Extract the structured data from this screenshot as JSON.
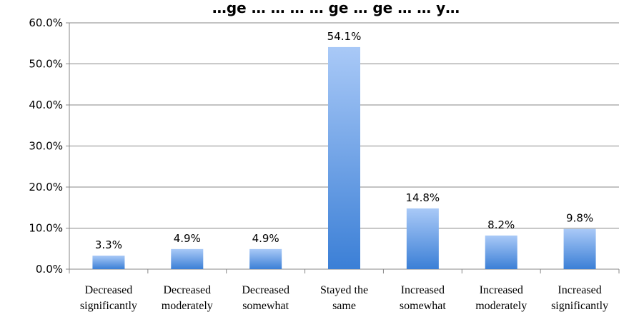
{
  "chart_data": {
    "type": "bar",
    "title": "…ge … … … … ge … ge … … y…",
    "categories": [
      [
        "Decreased",
        "significantly"
      ],
      [
        "Decreased",
        "moderately"
      ],
      [
        "Decreased",
        "somewhat"
      ],
      [
        "Stayed the",
        "same"
      ],
      [
        "Increased",
        "somewhat"
      ],
      [
        "Increased",
        "moderately"
      ],
      [
        "Increased",
        "significantly"
      ]
    ],
    "values": [
      3.3,
      4.9,
      4.9,
      54.1,
      14.8,
      8.2,
      9.8
    ],
    "value_labels": [
      "3.3%",
      "4.9%",
      "4.9%",
      "54.1%",
      "14.8%",
      "8.2%",
      "9.8%"
    ],
    "yticks": [
      0,
      10,
      20,
      30,
      40,
      50,
      60
    ],
    "ytick_labels": [
      "0.0%",
      "10.0%",
      "20.0%",
      "30.0%",
      "40.0%",
      "50.0%",
      "60.0%"
    ],
    "ylim": [
      0,
      60
    ],
    "grid": true,
    "legend": "none",
    "colors": {
      "bar_top": "#a9c9f7",
      "bar_bottom": "#3b7fd6",
      "grid": "#878787",
      "axis": "#878787"
    }
  }
}
